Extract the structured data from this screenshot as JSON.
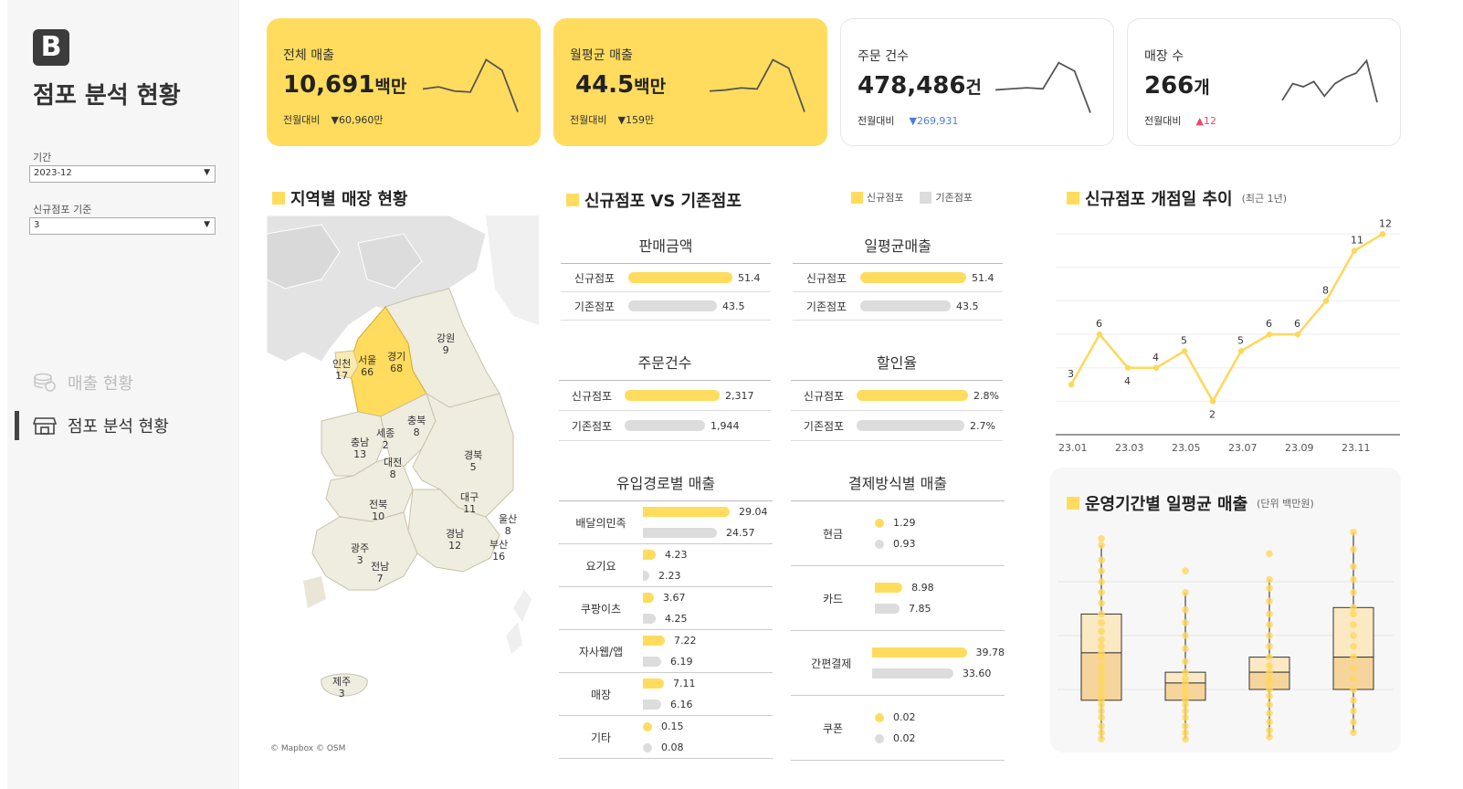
{
  "sidebar": {
    "logo": "B",
    "title": "점포 분석 현황",
    "filters": [
      {
        "label": "기간",
        "value": "2023-12"
      },
      {
        "label": "신규점포 기준",
        "value": "3"
      }
    ],
    "nav": [
      {
        "label": "매출 현황",
        "active": false
      },
      {
        "label": "점포 분석 현황",
        "active": true
      }
    ]
  },
  "kpis": [
    {
      "title": "전체 매출",
      "value": "10,691",
      "unit": "백만",
      "delta_label": "전월대비",
      "delta": "▼60,960만",
      "spark": [
        52,
        54,
        50,
        49,
        80,
        70,
        30
      ]
    },
    {
      "title": "월평균 매출",
      "value": "44.5",
      "unit": "백만",
      "delta_label": "전월대비",
      "delta": "▼159만",
      "spark": [
        50,
        51,
        53,
        52,
        80,
        72,
        30
      ]
    },
    {
      "title": "주문 건수",
      "value": "478,486",
      "unit": "건",
      "delta_label": "전월대비",
      "delta": "▼269,931",
      "spark": [
        52,
        53,
        54,
        53,
        78,
        70,
        30
      ]
    },
    {
      "title": "매장 수",
      "value": "266",
      "unit": "개",
      "delta_label": "전월대비",
      "delta": "▲12",
      "spark": [
        42,
        58,
        55,
        60,
        46,
        58,
        64,
        68,
        80,
        40
      ]
    }
  ],
  "map": {
    "title": "지역별 매장 현황",
    "attribution": "© Mapbox  © OSM",
    "regions": [
      {
        "name": "인천",
        "count": "17"
      },
      {
        "name": "서울",
        "count": "66"
      },
      {
        "name": "경기",
        "count": "68"
      },
      {
        "name": "강원",
        "count": "9"
      },
      {
        "name": "충남",
        "count": "13"
      },
      {
        "name": "세종",
        "count": "2"
      },
      {
        "name": "충북",
        "count": "8"
      },
      {
        "name": "대전",
        "count": "8"
      },
      {
        "name": "경북",
        "count": "5"
      },
      {
        "name": "대구",
        "count": "11"
      },
      {
        "name": "울산",
        "count": "8"
      },
      {
        "name": "전북",
        "count": "10"
      },
      {
        "name": "경남",
        "count": "12"
      },
      {
        "name": "부산",
        "count": "16"
      },
      {
        "name": "광주",
        "count": "3"
      },
      {
        "name": "전남",
        "count": "7"
      },
      {
        "name": "제주",
        "count": "3"
      }
    ]
  },
  "compare": {
    "title": "신규점포 VS 기존점포",
    "legend": [
      {
        "label": "신규점포",
        "color": "#ffdc5e"
      },
      {
        "label": "기존점포",
        "color": "#dcdcdc"
      }
    ],
    "panels": [
      {
        "head": "판매금액",
        "rows": [
          {
            "label": "신규점포",
            "value": "51.4",
            "ratio": 0.88
          },
          {
            "label": "기존점포",
            "value": "43.5",
            "ratio": 0.74
          }
        ]
      },
      {
        "head": "일평균매출",
        "rows": [
          {
            "label": "신규점포",
            "value": "51.4",
            "ratio": 0.88
          },
          {
            "label": "기존점포",
            "value": "43.5",
            "ratio": 0.74
          }
        ]
      },
      {
        "head": "주문건수",
        "rows": [
          {
            "label": "신규점포",
            "value": "2,317",
            "ratio": 0.86
          },
          {
            "label": "기존점포",
            "value": "1,944",
            "ratio": 0.72
          }
        ]
      },
      {
        "head": "할인율",
        "rows": [
          {
            "label": "신규점포",
            "value": "2.8%",
            "ratio": 0.91
          },
          {
            "label": "기존점포",
            "value": "2.7%",
            "ratio": 0.88
          }
        ]
      }
    ],
    "channel": {
      "head": "유입경로별 매출",
      "rows": [
        {
          "label": "배달의민족",
          "new": "29.04",
          "old": "24.57",
          "new_ratio": 0.95,
          "old_ratio": 0.81
        },
        {
          "label": "요기요",
          "new": "4.23",
          "old": "2.23",
          "new_ratio": 0.14,
          "old_ratio": 0.07
        },
        {
          "label": "쿠팡이츠",
          "new": "3.67",
          "old": "4.25",
          "new_ratio": 0.12,
          "old_ratio": 0.14
        },
        {
          "label": "자사웹/앱",
          "new": "7.22",
          "old": "6.19",
          "new_ratio": 0.24,
          "old_ratio": 0.2
        },
        {
          "label": "매장",
          "new": "7.11",
          "old": "6.16",
          "new_ratio": 0.23,
          "old_ratio": 0.2
        },
        {
          "label": "기타",
          "new": "0.15",
          "old": "0.08",
          "new_ratio": 0,
          "old_ratio": 0
        }
      ]
    },
    "payment": {
      "head": "결제방식별 매출",
      "rows": [
        {
          "label": "현금",
          "new": "1.29",
          "old": "0.93",
          "new_ratio": 0,
          "old_ratio": 0
        },
        {
          "label": "카드",
          "new": "8.98",
          "old": "7.85",
          "new_ratio": 0.29,
          "old_ratio": 0.26
        },
        {
          "label": "간편결제",
          "new": "39.78",
          "old": "33.60",
          "new_ratio": 1.0,
          "old_ratio": 0.86
        },
        {
          "label": "쿠폰",
          "new": "0.02",
          "old": "0.02",
          "new_ratio": 0,
          "old_ratio": 0
        }
      ]
    }
  },
  "trend": {
    "title": "신규점포 개점일 추이",
    "subtitle": "(최근 1년)"
  },
  "boxplot": {
    "title": "운영기간별 일평균 매출",
    "subtitle": "(단위 백만원)"
  },
  "chart_data": [
    {
      "type": "line",
      "title": "신규점포 개점일 추이",
      "x": [
        "23.01",
        "23.02",
        "23.03",
        "23.04",
        "23.05",
        "23.06",
        "23.07",
        "23.08",
        "23.09",
        "23.10",
        "23.11",
        "23.12"
      ],
      "x_ticks": [
        "23.01",
        "23.03",
        "23.05",
        "23.07",
        "23.09",
        "23.11"
      ],
      "series": [
        {
          "values": [
            3,
            6,
            4,
            4,
            5,
            2,
            5,
            6,
            6,
            8,
            11,
            12
          ]
        }
      ],
      "ylim": [
        0,
        13
      ],
      "grid": true,
      "color": "#ffd75a"
    },
    {
      "type": "scatter",
      "title": "운영기간별 일평균 매출",
      "groups": [
        {
          "q1": 20,
          "median": 42,
          "q3": 60,
          "min": 2,
          "max": 92,
          "points": [
            2,
            5,
            8,
            12,
            15,
            18,
            20,
            22,
            25,
            28,
            30,
            33,
            36,
            40,
            42,
            45,
            48,
            52,
            56,
            60,
            65,
            70,
            75,
            80,
            85,
            92,
            95
          ]
        },
        {
          "q1": 20,
          "median": 28,
          "q3": 33,
          "min": 2,
          "max": 70,
          "points": [
            2,
            5,
            8,
            12,
            15,
            18,
            20,
            22,
            25,
            28,
            30,
            33,
            38,
            44,
            50,
            56,
            62,
            70,
            80
          ]
        },
        {
          "q1": 25,
          "median": 33,
          "q3": 40,
          "min": 3,
          "max": 76,
          "points": [
            3,
            6,
            10,
            14,
            18,
            22,
            25,
            28,
            30,
            33,
            36,
            40,
            45,
            50,
            55,
            60,
            66,
            72,
            76,
            88
          ]
        },
        {
          "q1": 25,
          "median": 40,
          "q3": 63,
          "min": 5,
          "max": 98,
          "points": [
            5,
            10,
            15,
            20,
            25,
            30,
            35,
            40,
            45,
            50,
            55,
            60,
            63,
            70,
            76,
            82,
            90,
            98
          ]
        }
      ],
      "color": "#ffd75a"
    }
  ]
}
